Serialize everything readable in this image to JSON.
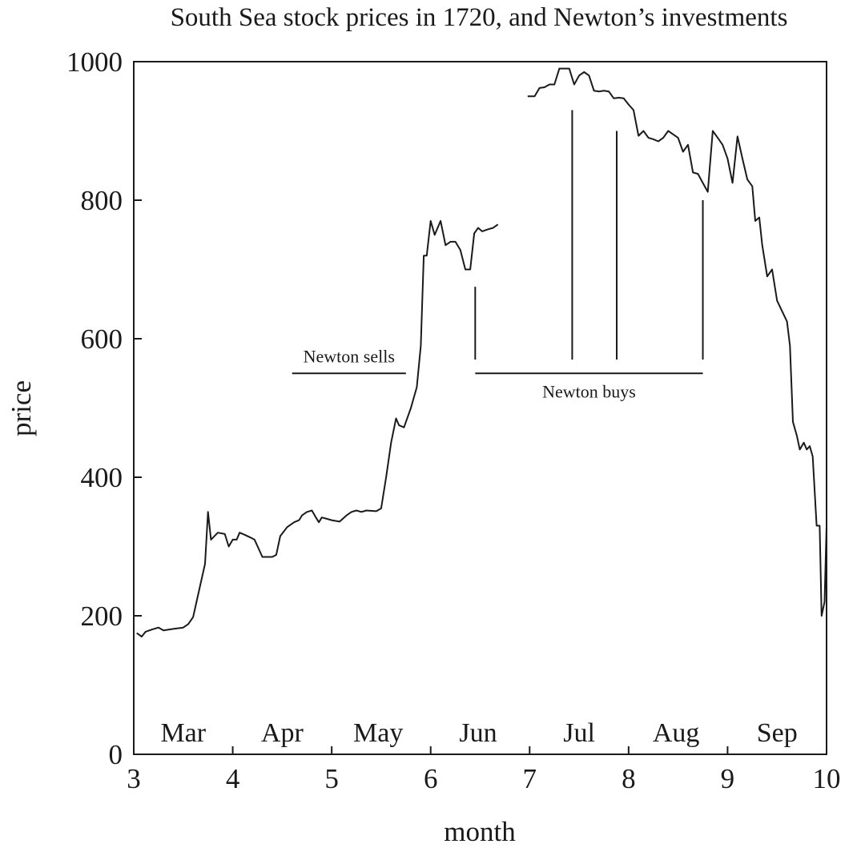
{
  "chart_data": {
    "type": "line",
    "title": "South Sea stock prices in 1720, and Newton’s investments",
    "xlabel": "month",
    "ylabel": "price",
    "xlim": [
      3,
      10
    ],
    "ylim": [
      0,
      1000
    ],
    "x_ticks": [
      3,
      4,
      5,
      6,
      7,
      8,
      9,
      10
    ],
    "y_ticks": [
      0,
      200,
      400,
      600,
      800,
      1000
    ],
    "grid": false,
    "legend": "none",
    "line_color": "#1a1a1a",
    "month_labels": [
      {
        "text": "Mar",
        "x": 3.5
      },
      {
        "text": "Apr",
        "x": 4.5
      },
      {
        "text": "May",
        "x": 5.47
      },
      {
        "text": "Jun",
        "x": 6.48
      },
      {
        "text": "Jul",
        "x": 7.5
      },
      {
        "text": "Aug",
        "x": 8.48
      },
      {
        "text": "Sep",
        "x": 9.5
      }
    ],
    "series": [
      {
        "segments": [
          [
            [
              3.03,
              175
            ],
            [
              3.08,
              170
            ],
            [
              3.12,
              177
            ],
            [
              3.18,
              180
            ],
            [
              3.25,
              183
            ],
            [
              3.3,
              179
            ],
            [
              3.4,
              181
            ],
            [
              3.5,
              183
            ],
            [
              3.55,
              188
            ],
            [
              3.6,
              198
            ],
            [
              3.65,
              230
            ],
            [
              3.72,
              275
            ],
            [
              3.75,
              350
            ],
            [
              3.78,
              310
            ],
            [
              3.85,
              320
            ],
            [
              3.92,
              318
            ],
            [
              3.96,
              300
            ],
            [
              4.0,
              310
            ],
            [
              4.04,
              310
            ],
            [
              4.07,
              320
            ],
            [
              4.12,
              317
            ],
            [
              4.18,
              313
            ],
            [
              4.22,
              310
            ],
            [
              4.3,
              285
            ],
            [
              4.4,
              285
            ],
            [
              4.44,
              288
            ],
            [
              4.48,
              315
            ],
            [
              4.55,
              328
            ],
            [
              4.62,
              335
            ],
            [
              4.67,
              338
            ],
            [
              4.7,
              345
            ],
            [
              4.75,
              350
            ],
            [
              4.8,
              352
            ],
            [
              4.84,
              342
            ],
            [
              4.87,
              335
            ],
            [
              4.9,
              342
            ],
            [
              4.95,
              340
            ],
            [
              5.0,
              338
            ],
            [
              5.08,
              336
            ],
            [
              5.15,
              345
            ],
            [
              5.2,
              350
            ],
            [
              5.25,
              352
            ],
            [
              5.3,
              350
            ],
            [
              5.35,
              352
            ],
            [
              5.45,
              351
            ],
            [
              5.5,
              355
            ],
            [
              5.55,
              400
            ],
            [
              5.6,
              450
            ],
            [
              5.65,
              485
            ],
            [
              5.68,
              475
            ],
            [
              5.73,
              472
            ],
            [
              5.8,
              500
            ],
            [
              5.86,
              530
            ],
            [
              5.9,
              590
            ],
            [
              5.93,
              720
            ],
            [
              5.96,
              720
            ],
            [
              6.0,
              770
            ],
            [
              6.04,
              750
            ],
            [
              6.1,
              770
            ],
            [
              6.15,
              735
            ],
            [
              6.2,
              740
            ],
            [
              6.25,
              740
            ],
            [
              6.3,
              728
            ],
            [
              6.35,
              700
            ],
            [
              6.4,
              700
            ],
            [
              6.44,
              752
            ],
            [
              6.48,
              760
            ],
            [
              6.52,
              755
            ],
            [
              6.58,
              758
            ],
            [
              6.63,
              760
            ],
            [
              6.68,
              765
            ]
          ],
          [
            [
              6.98,
              950
            ],
            [
              7.05,
              950
            ],
            [
              7.1,
              962
            ],
            [
              7.15,
              963
            ],
            [
              7.2,
              967
            ],
            [
              7.25,
              967
            ],
            [
              7.3,
              990
            ],
            [
              7.35,
              990
            ],
            [
              7.4,
              990
            ],
            [
              7.45,
              967
            ],
            [
              7.5,
              980
            ],
            [
              7.55,
              985
            ],
            [
              7.6,
              980
            ],
            [
              7.65,
              958
            ],
            [
              7.7,
              957
            ],
            [
              7.75,
              958
            ],
            [
              7.8,
              957
            ],
            [
              7.85,
              947
            ],
            [
              7.9,
              948
            ],
            [
              7.95,
              947
            ],
            [
              8.0,
              938
            ],
            [
              8.05,
              930
            ],
            [
              8.1,
              893
            ],
            [
              8.15,
              900
            ],
            [
              8.2,
              890
            ],
            [
              8.25,
              888
            ],
            [
              8.3,
              885
            ],
            [
              8.35,
              890
            ],
            [
              8.4,
              900
            ],
            [
              8.45,
              895
            ],
            [
              8.5,
              890
            ],
            [
              8.55,
              870
            ],
            [
              8.6,
              880
            ],
            [
              8.65,
              840
            ],
            [
              8.7,
              838
            ],
            [
              8.75,
              825
            ],
            [
              8.8,
              812
            ],
            [
              8.85,
              900
            ],
            [
              8.9,
              890
            ],
            [
              8.95,
              880
            ],
            [
              9.0,
              860
            ],
            [
              9.05,
              825
            ],
            [
              9.1,
              892
            ],
            [
              9.15,
              860
            ],
            [
              9.2,
              830
            ],
            [
              9.25,
              820
            ],
            [
              9.28,
              770
            ],
            [
              9.32,
              775
            ],
            [
              9.35,
              735
            ],
            [
              9.4,
              690
            ],
            [
              9.45,
              700
            ],
            [
              9.5,
              655
            ],
            [
              9.55,
              640
            ],
            [
              9.6,
              625
            ],
            [
              9.63,
              590
            ],
            [
              9.66,
              480
            ],
            [
              9.7,
              460
            ],
            [
              9.73,
              440
            ],
            [
              9.77,
              450
            ],
            [
              9.8,
              440
            ],
            [
              9.83,
              445
            ],
            [
              9.86,
              430
            ],
            [
              9.9,
              330
            ],
            [
              9.93,
              330
            ],
            [
              9.95,
              200
            ],
            [
              9.98,
              220
            ],
            [
              10.0,
              330
            ]
          ]
        ]
      }
    ],
    "annotations": [
      {
        "text": "Newton sells",
        "x1": 4.6,
        "x2": 5.75,
        "y": 550
      },
      {
        "text": "Newton buys",
        "x1": 6.45,
        "x2": 8.75,
        "y": 550,
        "ticks": [
          {
            "x": 6.45,
            "top": 675
          },
          {
            "x": 7.43,
            "top": 930
          },
          {
            "x": 7.88,
            "top": 900
          },
          {
            "x": 8.75,
            "top": 800
          }
        ]
      }
    ]
  }
}
